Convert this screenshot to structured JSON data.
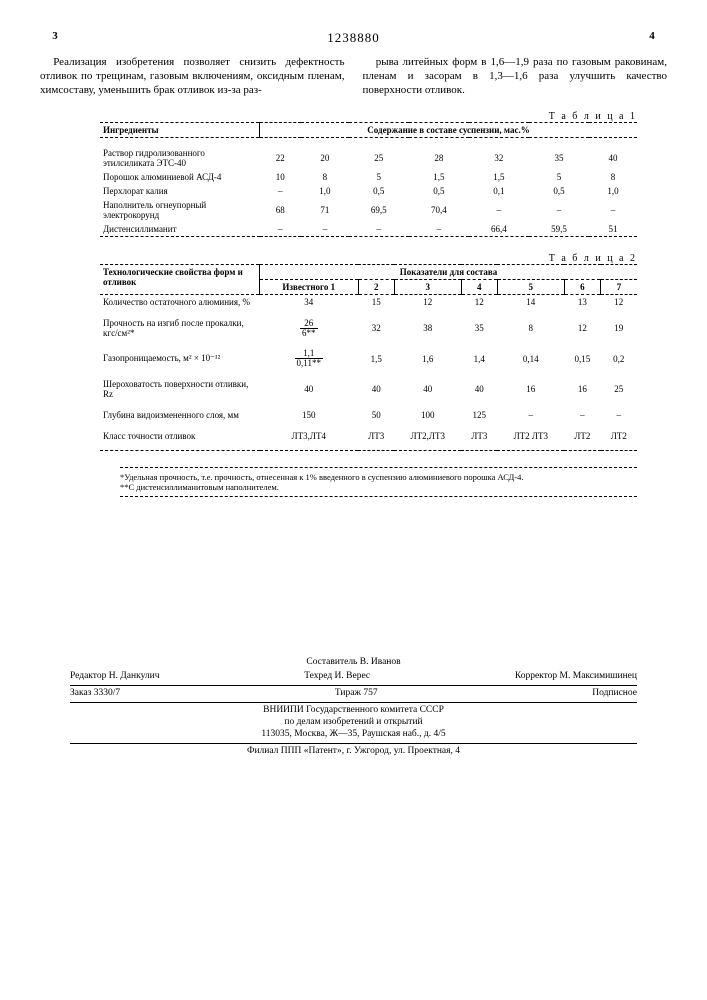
{
  "header": {
    "page_left": "3",
    "doc_number": "1238880",
    "page_right": "4"
  },
  "para": {
    "left": "Реализация изобретения позволяет снизить дефектность отливок по трещинам, газовым включениям, оксидным пленам, химсоставу, уменьшить брак отливок из-за раз-",
    "right": "рыва литейных форм в 1,6—1,9 раза по газовым раковинам, пленам и засорам в 1,3—1,6 раза улучшить качество поверхности отливок."
  },
  "table1": {
    "caption": "Т а б л и ц а  1",
    "head_label": "Ингредиенты",
    "head_span": "Содержание в составе суспензии, мас.%",
    "rows": [
      {
        "label": "Раствор гидролизованного этилсиликата ЭТС-40",
        "v": [
          "22",
          "20",
          "25",
          "28",
          "32",
          "35",
          "40"
        ]
      },
      {
        "label": "Порошок алюминиевой АСД-4",
        "v": [
          "10",
          "8",
          "5",
          "1,5",
          "1,5",
          "5",
          "8"
        ]
      },
      {
        "label": "Перхлорат калия",
        "v": [
          "–",
          "1,0",
          "0,5",
          "0,5",
          "0,1",
          "0,5",
          "1,0"
        ]
      },
      {
        "label": "Наполнитель огнеупорный электрокорунд",
        "v": [
          "68",
          "71",
          "69,5",
          "70,4",
          "–",
          "–",
          "–"
        ]
      },
      {
        "label": "Дистенсиллиманит",
        "v": [
          "–",
          "–",
          "–",
          "–",
          "66,4",
          "59,5",
          "51"
        ]
      }
    ]
  },
  "table2": {
    "caption": "Т а б л и ц а  2",
    "head_label": "Технологические свойства форм и отливок",
    "head_span": "Показатели для состава",
    "sub": [
      "Известного 1",
      "2",
      "3",
      "4",
      "5",
      "6",
      "7"
    ],
    "rows": [
      {
        "label": "Количество остаточного алюминия, %",
        "v": [
          "34",
          "15",
          "12",
          "12",
          "14",
          "13",
          "12"
        ]
      },
      {
        "label": "Прочность на изгиб после прокалки, кгс/см²*",
        "v": [
          "26/6**",
          "32",
          "38",
          "35",
          "8",
          "12",
          "19"
        ],
        "frac": true
      },
      {
        "label": "Газопроницаемость, м² × 10⁻¹²",
        "v": [
          "1,1/0,11**",
          "1,5",
          "1,6",
          "1,4",
          "0,14",
          "0,15",
          "0,2"
        ],
        "frac": true
      },
      {
        "label": "Шероховатость поверхности отливки, Rz",
        "v": [
          "40",
          "40",
          "40",
          "40",
          "16",
          "16",
          "25"
        ]
      },
      {
        "label": "Глубина видоизмененного слоя, мм",
        "v": [
          "150",
          "50",
          "100",
          "125",
          "–",
          "–",
          "–"
        ]
      },
      {
        "label": "Класс точности отливок",
        "v": [
          "ЛТ3,ЛТ4",
          "ЛТ3",
          "ЛТ2,ЛТ3",
          "ЛТ3",
          "ЛТ2 ЛТ3",
          "ЛТ2",
          "ЛТ2"
        ]
      }
    ]
  },
  "footnote": {
    "l1": "*Удельная прочность, т.е. прочность, отнесенная к 1% введенного в суспензию алюминиевого порошка АСД-4.",
    "l2": "**С дистенсиллиманитовым наполнителем."
  },
  "imprint": {
    "author": "Составитель В. Иванов",
    "editor": "Редактор Н. Данкулич",
    "tech": "Техред И. Верес",
    "corr": "Корректор М. Максимишинец",
    "order": "Заказ 3330/7",
    "tirage": "Тираж 757",
    "sign": "Подписное",
    "org1": "ВНИИПИ Государственного комитета СССР",
    "org2": "по делам изобретений и открытий",
    "addr1": "113035, Москва, Ж—35, Раушская наб., д. 4/5",
    "addr2": "Филиал ППП «Патент», г. Ужгород, ул. Проектная, 4"
  }
}
